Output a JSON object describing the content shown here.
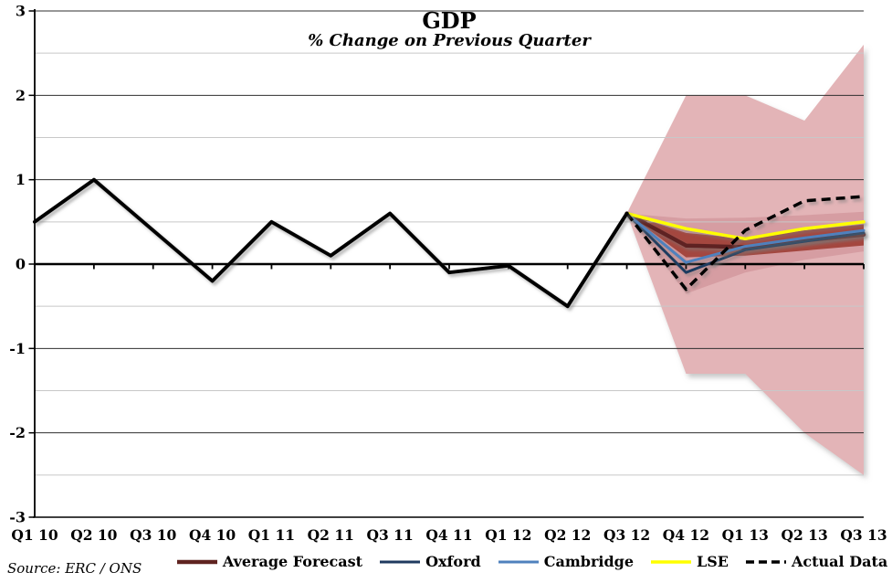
{
  "source_note": "Source: ERC / ONS",
  "chart_data": {
    "type": "line",
    "title": "GDP",
    "subtitle": "% Change on Previous Quarter",
    "categories": [
      "Q1 10",
      "Q2 10",
      "Q3 10",
      "Q4 10",
      "Q1 11",
      "Q2 11",
      "Q3 11",
      "Q4 11",
      "Q1 12",
      "Q2 12",
      "Q3 12",
      "Q4 12",
      "Q1 13",
      "Q2 13",
      "Q3 13"
    ],
    "ylim": [
      -3,
      3
    ],
    "y_major_ticks": [
      3,
      2,
      1,
      0,
      -1,
      -2,
      -3
    ],
    "y_minor_ticks": [
      2.5,
      1.5,
      0.5,
      -0.5,
      -1.5,
      -2.5
    ],
    "grid": "major-black-and-minor-gray",
    "legend_position": "bottom",
    "colors": {
      "gridline_major": "#2f2f2f",
      "gridline_minor": "#c8c8c8",
      "axis": "#000000",
      "shadow": "#7a7a7a"
    },
    "bands": [
      {
        "name": "outer forecast range",
        "color": "#e3b4b7",
        "start_index": 10,
        "upper": [
          0.6,
          2.0,
          2.0,
          1.7,
          2.6
        ],
        "lower": [
          0.6,
          -1.3,
          -1.3,
          -2.0,
          -2.5
        ]
      },
      {
        "name": "middle forecast range",
        "color": "#d69da2",
        "start_index": 10,
        "upper": [
          0.6,
          0.54,
          0.55,
          0.58,
          0.62
        ],
        "lower": [
          0.6,
          -0.35,
          -0.1,
          0.05,
          0.15
        ]
      },
      {
        "name": "inner forecast range",
        "color": "#a4473f",
        "start_index": 10,
        "upper": [
          0.6,
          0.37,
          0.3,
          0.4,
          0.47
        ],
        "lower": [
          0.6,
          0.08,
          0.1,
          0.16,
          0.22
        ]
      }
    ],
    "series": [
      {
        "name": "Average Forecast",
        "color": "#5f2320",
        "width": 4.5,
        "dash": null,
        "in_legend": true,
        "values": [
          null,
          null,
          null,
          null,
          null,
          null,
          null,
          null,
          null,
          null,
          0.6,
          0.22,
          0.2,
          0.28,
          0.35
        ]
      },
      {
        "name": "Oxford",
        "color": "#1f3a5f",
        "width": 3,
        "dash": null,
        "in_legend": true,
        "values": [
          null,
          null,
          null,
          null,
          null,
          null,
          null,
          null,
          null,
          null,
          0.6,
          -0.1,
          0.17,
          0.27,
          0.37
        ]
      },
      {
        "name": "Cambridge",
        "color": "#4f81bd",
        "width": 3,
        "dash": null,
        "in_legend": true,
        "values": [
          null,
          null,
          null,
          null,
          null,
          null,
          null,
          null,
          null,
          null,
          0.6,
          0.02,
          0.21,
          0.31,
          0.4
        ]
      },
      {
        "name": "LSE",
        "color": "#ffff00",
        "width": 3.5,
        "dash": null,
        "in_legend": true,
        "values": [
          null,
          null,
          null,
          null,
          null,
          null,
          null,
          null,
          null,
          null,
          0.6,
          0.42,
          0.3,
          0.42,
          0.5
        ]
      },
      {
        "name": "Actual Data",
        "color": "#000000",
        "width": 3.5,
        "dash": "10 6",
        "in_legend": true,
        "values": [
          null,
          null,
          null,
          null,
          null,
          null,
          null,
          null,
          null,
          null,
          0.6,
          -0.3,
          0.4,
          0.75,
          0.8
        ]
      },
      {
        "name": "GDP history",
        "color": "#000000",
        "width": 4,
        "dash": null,
        "in_legend": false,
        "values": [
          0.5,
          1.0,
          0.4,
          -0.2,
          0.5,
          0.1,
          0.6,
          -0.1,
          -0.02,
          -0.5,
          0.6,
          null,
          null,
          null,
          null
        ]
      }
    ]
  }
}
